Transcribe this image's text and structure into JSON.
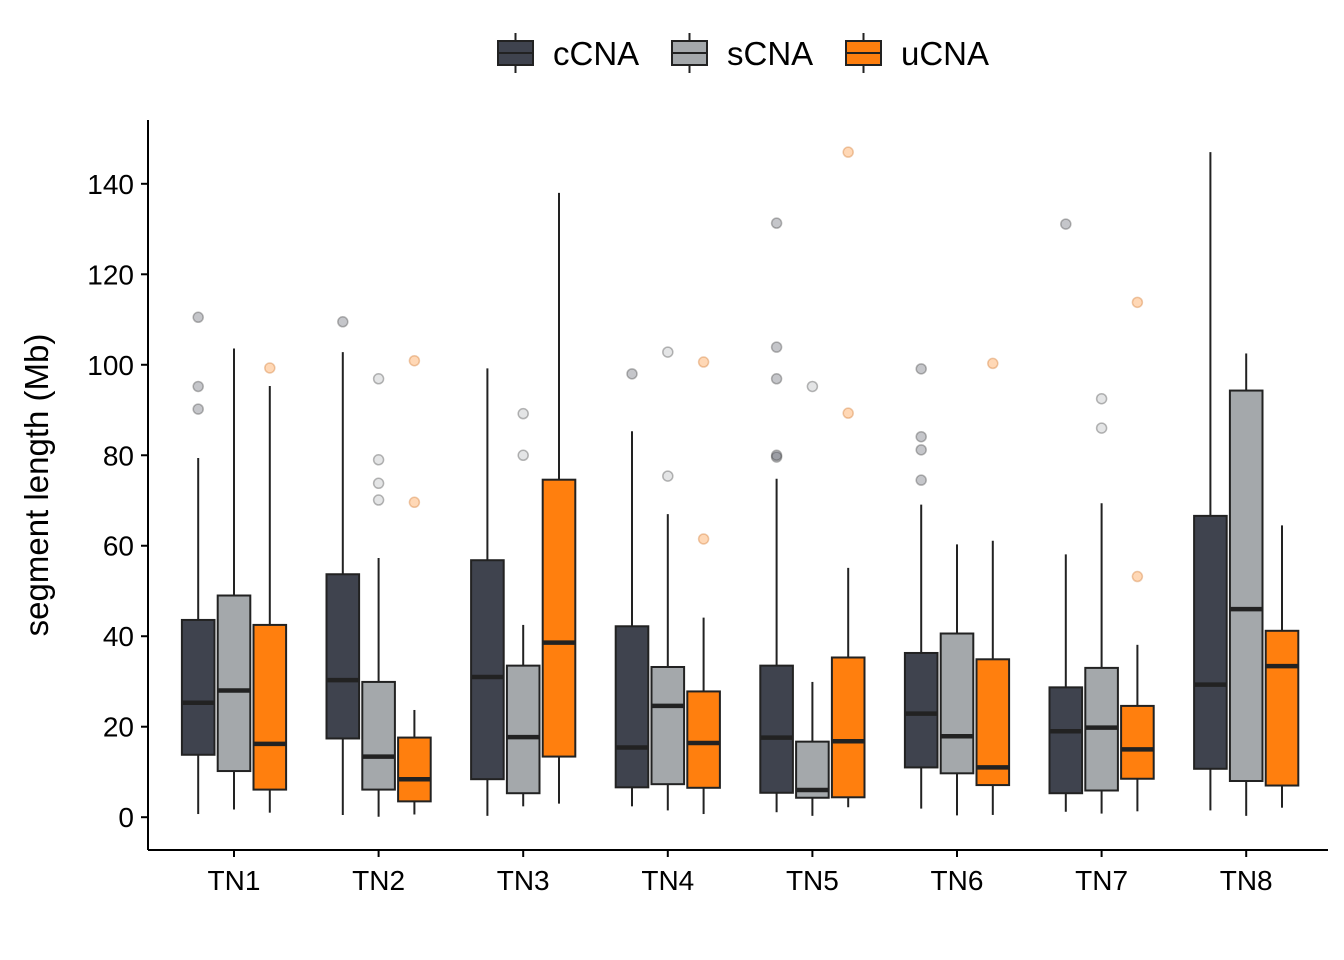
{
  "chart_data": {
    "type": "box",
    "title": "",
    "xlabel": "",
    "ylabel": "segment length (Mb)",
    "ylim": [
      -7,
      155
    ],
    "yticks": [
      0,
      20,
      40,
      60,
      80,
      100,
      120,
      140
    ],
    "categories": [
      "TN1",
      "TN2",
      "TN3",
      "TN4",
      "TN5",
      "TN6",
      "TN7",
      "TN8"
    ],
    "legend": {
      "position": "top",
      "entries": [
        "cCNA",
        "sCNA",
        "uCNA"
      ]
    },
    "grid": false,
    "series": [
      {
        "name": "cCNA",
        "color": "#3f434e",
        "boxes": [
          {
            "min": 0.7,
            "q1": 13.8,
            "median": 25.3,
            "q3": 43.6,
            "max": 79.4,
            "outliers": [
              90.2,
              95.2,
              110.5
            ]
          },
          {
            "min": 0.5,
            "q1": 17.4,
            "median": 30.3,
            "q3": 53.7,
            "max": 102.8,
            "outliers": [
              109.5
            ]
          },
          {
            "min": 0.3,
            "q1": 8.4,
            "median": 31.0,
            "q3": 56.8,
            "max": 99.2,
            "outliers": []
          },
          {
            "min": 2.4,
            "q1": 6.6,
            "median": 15.4,
            "q3": 42.2,
            "max": 85.3,
            "outliers": [
              98.0
            ]
          },
          {
            "min": 1.1,
            "q1": 5.4,
            "median": 17.6,
            "q3": 33.5,
            "max": 74.8,
            "outliers": [
              79.6,
              80.0,
              96.9,
              103.9,
              131.3
            ]
          },
          {
            "min": 1.9,
            "q1": 11.0,
            "median": 22.9,
            "q3": 36.3,
            "max": 69.1,
            "outliers": [
              74.5,
              81.2,
              84.1,
              99.1
            ]
          },
          {
            "min": 1.2,
            "q1": 5.3,
            "median": 19.0,
            "q3": 28.7,
            "max": 58.1,
            "outliers": [
              131.1
            ]
          },
          {
            "min": 1.5,
            "q1": 10.7,
            "median": 29.3,
            "q3": 66.6,
            "max": 147.0,
            "outliers": []
          }
        ]
      },
      {
        "name": "sCNA",
        "color": "#a4a8ab",
        "boxes": [
          {
            "min": 1.7,
            "q1": 10.2,
            "median": 28.0,
            "q3": 49.0,
            "max": 103.6,
            "outliers": []
          },
          {
            "min": 0.1,
            "q1": 6.1,
            "median": 13.4,
            "q3": 29.9,
            "max": 57.3,
            "outliers": [
              70.1,
              73.8,
              79.0,
              96.9
            ]
          },
          {
            "min": 2.4,
            "q1": 5.3,
            "median": 17.7,
            "q3": 33.5,
            "max": 42.5,
            "outliers": [
              80.0,
              89.2
            ]
          },
          {
            "min": 1.5,
            "q1": 7.3,
            "median": 24.6,
            "q3": 33.2,
            "max": 67.0,
            "outliers": [
              75.4,
              102.8
            ]
          },
          {
            "min": 0.3,
            "q1": 4.3,
            "median": 6.0,
            "q3": 16.7,
            "max": 29.9,
            "outliers": [
              95.2
            ]
          },
          {
            "min": 0.4,
            "q1": 9.7,
            "median": 17.9,
            "q3": 40.6,
            "max": 60.3,
            "outliers": []
          },
          {
            "min": 0.8,
            "q1": 5.9,
            "median": 19.8,
            "q3": 33.0,
            "max": 69.4,
            "outliers": [
              86.0,
              92.5
            ]
          },
          {
            "min": 0.3,
            "q1": 8.0,
            "median": 46.0,
            "q3": 94.3,
            "max": 102.5,
            "outliers": []
          }
        ]
      },
      {
        "name": "uCNA",
        "color": "#ff7f0e",
        "boxes": [
          {
            "min": 1.0,
            "q1": 6.1,
            "median": 16.2,
            "q3": 42.5,
            "max": 95.3,
            "outliers": [
              99.3
            ]
          },
          {
            "min": 0.6,
            "q1": 3.5,
            "median": 8.4,
            "q3": 17.6,
            "max": 23.7,
            "outliers": [
              69.6,
              100.9
            ]
          },
          {
            "min": 3.0,
            "q1": 13.4,
            "median": 38.6,
            "q3": 74.6,
            "max": 138.0,
            "outliers": []
          },
          {
            "min": 0.7,
            "q1": 6.5,
            "median": 16.4,
            "q3": 27.8,
            "max": 44.1,
            "outliers": [
              61.5,
              100.6
            ]
          },
          {
            "min": 2.2,
            "q1": 4.4,
            "median": 16.8,
            "q3": 35.3,
            "max": 55.1,
            "outliers": [
              89.3,
              147.0
            ]
          },
          {
            "min": 0.5,
            "q1": 7.1,
            "median": 11.0,
            "q3": 34.9,
            "max": 61.1,
            "outliers": [
              100.3
            ]
          },
          {
            "min": 1.3,
            "q1": 8.5,
            "median": 15.0,
            "q3": 24.6,
            "max": 38.1,
            "outliers": [
              53.2,
              113.8
            ]
          },
          {
            "min": 2.1,
            "q1": 7.0,
            "median": 33.4,
            "q3": 41.2,
            "max": 64.5,
            "outliers": []
          }
        ]
      }
    ]
  }
}
